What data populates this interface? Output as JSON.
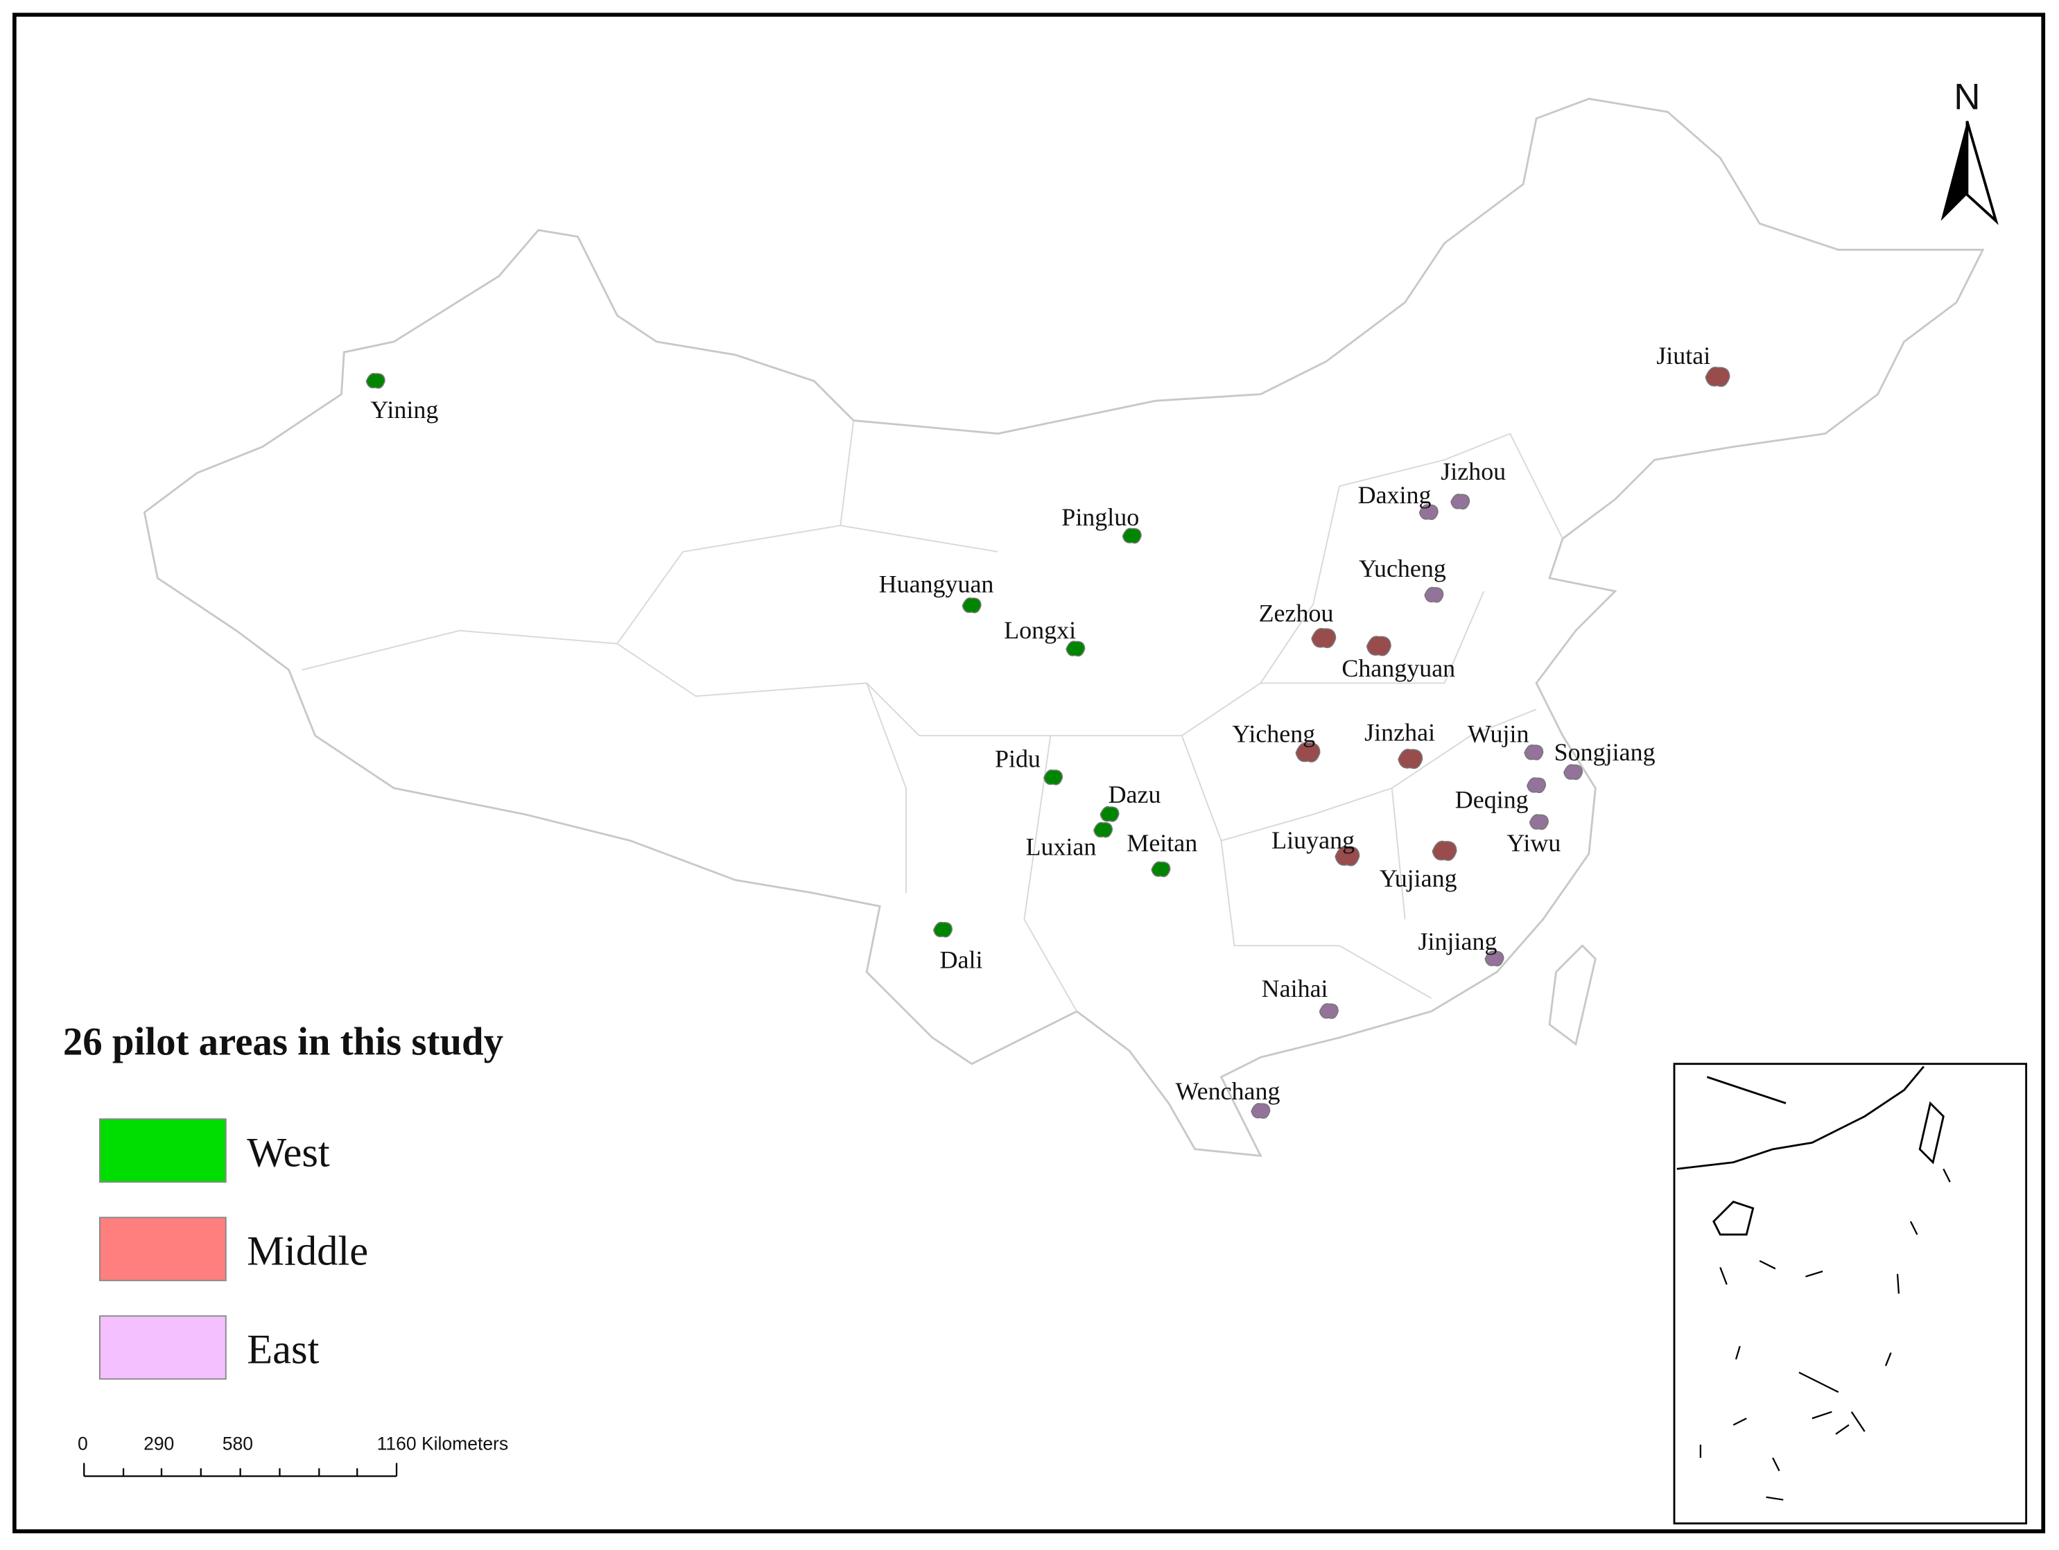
{
  "title": "26 pilot areas in this study",
  "north": "N",
  "legend": [
    {
      "label": "West",
      "color": "#00dd00"
    },
    {
      "label": "Middle",
      "color": "#ff7f7f"
    },
    {
      "label": "East",
      "color": "#f5c0ff"
    }
  ],
  "areas": [
    {
      "name": "Yining",
      "region": "West"
    },
    {
      "name": "Pingluo",
      "region": "West"
    },
    {
      "name": "Huangyuan",
      "region": "West"
    },
    {
      "name": "Longxi",
      "region": "West"
    },
    {
      "name": "Pidu",
      "region": "West"
    },
    {
      "name": "Dazu",
      "region": "West"
    },
    {
      "name": "Luxian",
      "region": "West"
    },
    {
      "name": "Meitan",
      "region": "West"
    },
    {
      "name": "Dali",
      "region": "West"
    },
    {
      "name": "Jiutai",
      "region": "Middle"
    },
    {
      "name": "Zezhou",
      "region": "Middle"
    },
    {
      "name": "Changyuan",
      "region": "Middle"
    },
    {
      "name": "Yicheng",
      "region": "Middle"
    },
    {
      "name": "Jinzhai",
      "region": "Middle"
    },
    {
      "name": "Liuyang",
      "region": "Middle"
    },
    {
      "name": "Yujiang",
      "region": "Middle"
    },
    {
      "name": "Jizhou",
      "region": "East"
    },
    {
      "name": "Daxing",
      "region": "East"
    },
    {
      "name": "Yucheng",
      "region": "East"
    },
    {
      "name": "Wujin",
      "region": "East"
    },
    {
      "name": "Songjiang",
      "region": "East"
    },
    {
      "name": "Deqing",
      "region": "East"
    },
    {
      "name": "Yiwu",
      "region": "East"
    },
    {
      "name": "Jinjiang",
      "region": "East"
    },
    {
      "name": "Naihai",
      "region": "East"
    },
    {
      "name": "Wenchang",
      "region": "East"
    }
  ],
  "scale_bar": {
    "labels": [
      "0",
      "290",
      "580",
      "1160 Kilometers"
    ]
  }
}
